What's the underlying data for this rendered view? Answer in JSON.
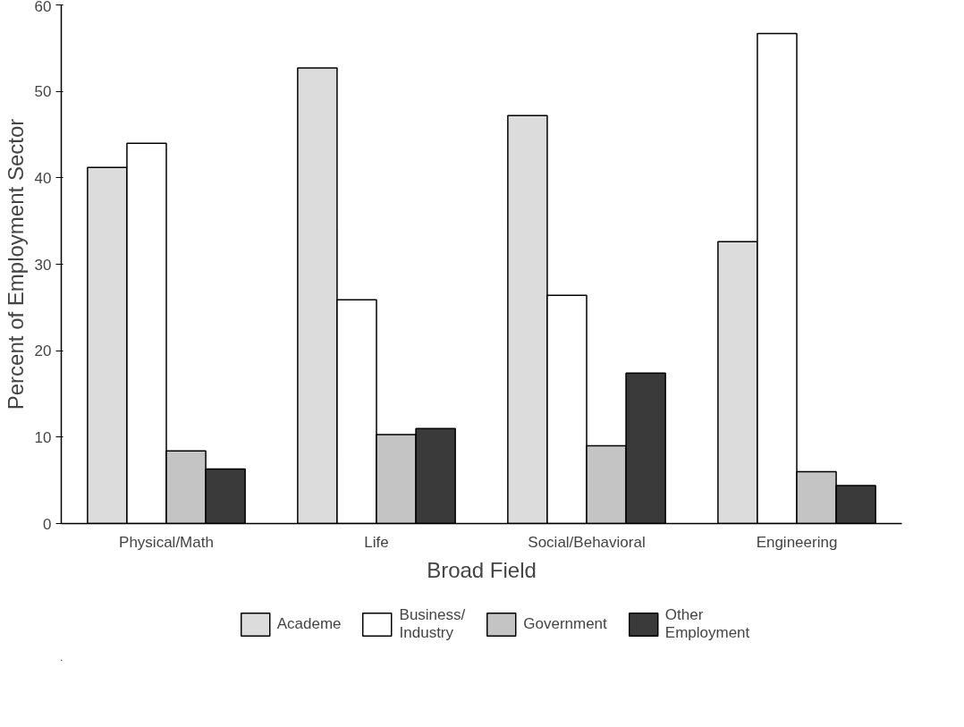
{
  "chart_data": {
    "type": "bar",
    "xlabel": "Broad Field",
    "ylabel": "Percent of Employment Sector",
    "categories": [
      "Physical/Math",
      "Life",
      "Social/Behavioral",
      "Engineering"
    ],
    "series": [
      {
        "name": "Academe",
        "color": "#dcdcdc",
        "values": [
          41.2,
          52.7,
          47.2,
          32.6
        ]
      },
      {
        "name": "Business/\nIndustry",
        "color": "#ffffff",
        "values": [
          44.0,
          25.9,
          26.4,
          56.7
        ]
      },
      {
        "name": "Government",
        "color": "#c4c4c4",
        "values": [
          8.4,
          10.3,
          9.0,
          6.0
        ]
      },
      {
        "name": "Other\nEmployment",
        "color": "#3a3a3a",
        "values": [
          6.3,
          11.0,
          17.4,
          4.4
        ]
      }
    ],
    "ylim": [
      0,
      60
    ],
    "yticks": [
      0,
      10,
      20,
      30,
      40,
      50,
      60
    ],
    "grid": false,
    "legend": "bottom"
  }
}
